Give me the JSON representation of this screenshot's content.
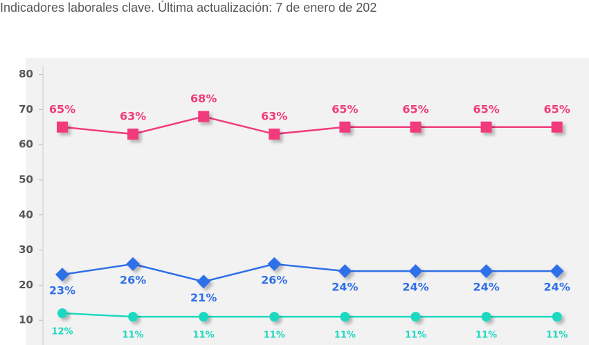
{
  "chart_data": {
    "type": "line",
    "subtitle": "Indicadores laborales clave. Última actualización: 7 de enero de 202",
    "ylim": [
      0,
      84.5
    ],
    "yticks": [
      10,
      20,
      30,
      40,
      50,
      60,
      70,
      80
    ],
    "series": [
      {
        "color": "#f23b7c",
        "marker": "square",
        "values": [
          65,
          63,
          68,
          63,
          65,
          65,
          65,
          65
        ],
        "value_labels": [
          "65%",
          "63%",
          "68%",
          "63%",
          "65%",
          "65%",
          "65%",
          "65%"
        ]
      },
      {
        "color": "#2f6fe8",
        "marker": "diamond",
        "values": [
          23,
          26,
          21,
          26,
          24,
          24,
          24,
          24
        ],
        "value_labels": [
          "23%",
          "26%",
          "21%",
          "26%",
          "24%",
          "24%",
          "24%",
          "24%"
        ]
      },
      {
        "color": "#1ed8c0",
        "marker": "circle",
        "values": [
          12,
          11,
          11,
          11,
          11,
          11,
          11,
          11
        ],
        "value_labels": [
          "12%",
          "11%",
          "11%",
          "11%",
          "11%",
          "11%",
          "11%",
          "11%"
        ]
      }
    ]
  }
}
